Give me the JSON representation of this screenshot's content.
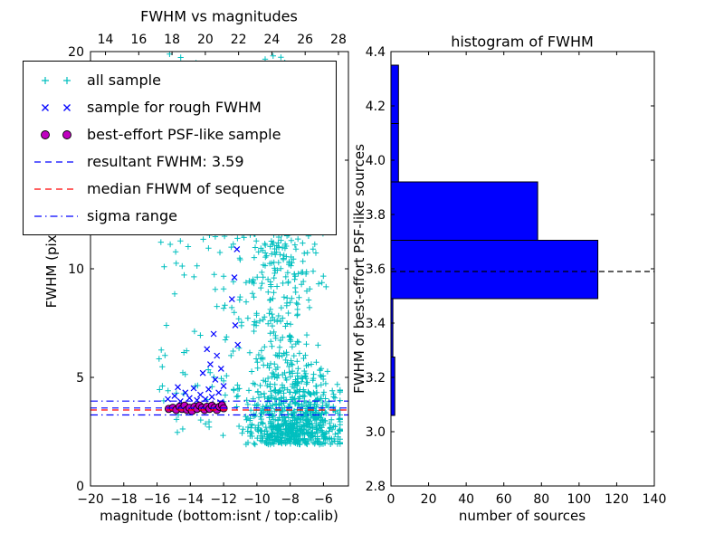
{
  "figure": {
    "background": "#ffffff"
  },
  "legend": {
    "entries": [
      {
        "label": "all sample",
        "type": "marker",
        "marker": "plus",
        "color": "#00bfbf"
      },
      {
        "label": "sample for rough FWHM",
        "type": "marker",
        "marker": "x",
        "color": "#0000ff"
      },
      {
        "label": "best-effort PSF-like sample",
        "type": "marker",
        "marker": "circle",
        "color": "#bf00bf",
        "edge": "#000000"
      },
      {
        "label": "resultant FWHM: 3.59",
        "type": "line",
        "style": "dashed",
        "color": "#0000ff"
      },
      {
        "label": "median FHWM of sequence",
        "type": "line",
        "style": "dashed",
        "color": "#ff0000"
      },
      {
        "label": "sigma range",
        "type": "line",
        "style": "dashdot",
        "color": "#0000ff"
      }
    ]
  },
  "chart_data": [
    {
      "type": "scatter",
      "title": "FWHM vs magnitudes",
      "xlabel": "magnitude (bottom:isnt / top:calib)",
      "ylabel": "FWHM (pix)",
      "xlim": [
        -20,
        -4.5
      ],
      "ylim": [
        0,
        20
      ],
      "xticks": [
        -20,
        -18,
        -16,
        -14,
        -12,
        -10,
        -8,
        -6
      ],
      "xtick_labels": [
        "−20",
        "−18",
        "−16",
        "−14",
        "−12",
        "−10",
        "−8",
        "−6"
      ],
      "yticks": [
        0,
        5,
        10,
        15,
        20
      ],
      "ytick_labels": [
        "0",
        "5",
        "10",
        "15",
        "20"
      ],
      "top_axis": {
        "lim": [
          13.1,
          28.6
        ],
        "ticks": [
          14,
          16,
          18,
          20,
          22,
          24,
          26,
          28
        ],
        "tick_labels": [
          "14",
          "16",
          "18",
          "20",
          "22",
          "24",
          "26",
          "28"
        ]
      },
      "series": [
        {
          "name": "all sample",
          "marker": "+",
          "color": "#00bfbf",
          "seed": 7,
          "clusters": [
            {
              "n": 680,
              "x": {
                "dist": "normal",
                "mean": -7.7,
                "std": 1.35,
                "min": -12.0,
                "max": -5.0
              },
              "y": {
                "dist": "halfnormal",
                "base": 1.9,
                "std": 1.5,
                "max": 20
              }
            },
            {
              "n": 300,
              "x": {
                "dist": "normal",
                "mean": -8.5,
                "std": 1.2,
                "min": -12.0,
                "max": -5.3
              },
              "y": {
                "dist": "uniform",
                "min": 4,
                "max": 14
              }
            },
            {
              "n": 170,
              "x": {
                "dist": "normal",
                "mean": -9.0,
                "std": 1.3,
                "min": -12.5,
                "max": -6.0
              },
              "y": {
                "dist": "uniform",
                "min": 9,
                "max": 20
              }
            },
            {
              "n": 90,
              "x": {
                "dist": "uniform",
                "min": -16.0,
                "max": -10.5
              },
              "y": {
                "dist": "uniform",
                "min": 2,
                "max": 20
              }
            },
            {
              "n": 30,
              "x": {
                "dist": "uniform",
                "min": -15.8,
                "max": -11.0
              },
              "y": {
                "dist": "uniform",
                "min": 2.5,
                "max": 7
              }
            }
          ]
        },
        {
          "name": "sample for rough FWHM",
          "marker": "x",
          "color": "#0000ff",
          "points": [
            [
              -15.35,
              4.0
            ],
            [
              -14.95,
              4.15
            ],
            [
              -14.75,
              4.55
            ],
            [
              -14.6,
              3.9
            ],
            [
              -14.3,
              4.3
            ],
            [
              -14.05,
              4.05
            ],
            [
              -13.8,
              4.5
            ],
            [
              -13.6,
              3.95
            ],
            [
              -13.4,
              4.2
            ],
            [
              -13.25,
              5.2
            ],
            [
              -13.1,
              4.0
            ],
            [
              -13.0,
              6.3
            ],
            [
              -12.9,
              4.45
            ],
            [
              -12.8,
              5.6
            ],
            [
              -12.7,
              4.1
            ],
            [
              -12.6,
              7.0
            ],
            [
              -12.5,
              4.9
            ],
            [
              -12.4,
              6.0
            ],
            [
              -12.3,
              4.3
            ],
            [
              -12.2,
              3.85
            ],
            [
              -12.15,
              5.4
            ],
            [
              -12.0,
              4.6
            ],
            [
              -11.5,
              8.6
            ],
            [
              -11.35,
              9.6
            ],
            [
              -11.3,
              7.4
            ],
            [
              -11.2,
              10.9
            ],
            [
              -11.15,
              6.5
            ],
            [
              -11.05,
              11.8
            ]
          ]
        },
        {
          "name": "best-effort PSF-like sample",
          "marker": "o",
          "color": "#bf00bf",
          "edge_color": "#000000",
          "points": [
            [
              -15.3,
              3.55
            ],
            [
              -15.05,
              3.6
            ],
            [
              -14.85,
              3.5
            ],
            [
              -14.65,
              3.65
            ],
            [
              -14.5,
              3.55
            ],
            [
              -14.35,
              3.7
            ],
            [
              -14.2,
              3.5
            ],
            [
              -14.05,
              3.6
            ],
            [
              -13.9,
              3.45
            ],
            [
              -13.75,
              3.65
            ],
            [
              -13.6,
              3.55
            ],
            [
              -13.45,
              3.7
            ],
            [
              -13.3,
              3.6
            ],
            [
              -13.15,
              3.5
            ],
            [
              -13.0,
              3.65
            ],
            [
              -12.85,
              3.55
            ],
            [
              -12.7,
              3.7
            ],
            [
              -12.55,
              3.6
            ],
            [
              -12.4,
              3.5
            ],
            [
              -12.25,
              3.65
            ],
            [
              -12.1,
              3.72
            ],
            [
              -12.0,
              3.58
            ]
          ]
        }
      ],
      "hlines": [
        {
          "name": "resultant-fwhm",
          "label": "resultant FWHM: 3.59",
          "y": 3.59,
          "color": "#0000ff",
          "style": "dashed"
        },
        {
          "name": "median-fwhm",
          "label": "median FHWM of sequence",
          "y": 3.5,
          "color": "#ff0000",
          "style": "dashed"
        },
        {
          "name": "sigma-upper",
          "label": "sigma range",
          "y": 3.91,
          "color": "#0000ff",
          "style": "dashdot"
        },
        {
          "name": "sigma-lower",
          "label": "sigma range",
          "y": 3.27,
          "color": "#0000ff",
          "style": "dashdot"
        }
      ]
    },
    {
      "type": "bar",
      "orientation": "horizontal",
      "title": "histogram of FWHM",
      "xlabel": "number of sources",
      "ylabel": "FWHM of best-effort PSF-like sources",
      "xlim": [
        0,
        140
      ],
      "ylim": [
        2.8,
        4.4
      ],
      "xticks": [
        0,
        20,
        40,
        60,
        80,
        100,
        120,
        140
      ],
      "xtick_labels": [
        "0",
        "20",
        "40",
        "60",
        "80",
        "100",
        "120",
        "140"
      ],
      "yticks": [
        2.8,
        3.0,
        3.2,
        3.4,
        3.6,
        3.8,
        4.0,
        4.2,
        4.4
      ],
      "ytick_labels": [
        "2.8",
        "3.0",
        "3.2",
        "3.4",
        "3.6",
        "3.8",
        "4.0",
        "4.2",
        "4.4"
      ],
      "bin_edges": [
        3.06,
        3.275,
        3.49,
        3.705,
        3.92,
        4.135,
        4.35
      ],
      "values": [
        2,
        1,
        110,
        78,
        4,
        4
      ],
      "bar_color": "#0000ff",
      "bar_edge_color": "#000000",
      "dashed_line": {
        "y": 3.59,
        "color": "#000000",
        "style": "dashed"
      }
    }
  ]
}
